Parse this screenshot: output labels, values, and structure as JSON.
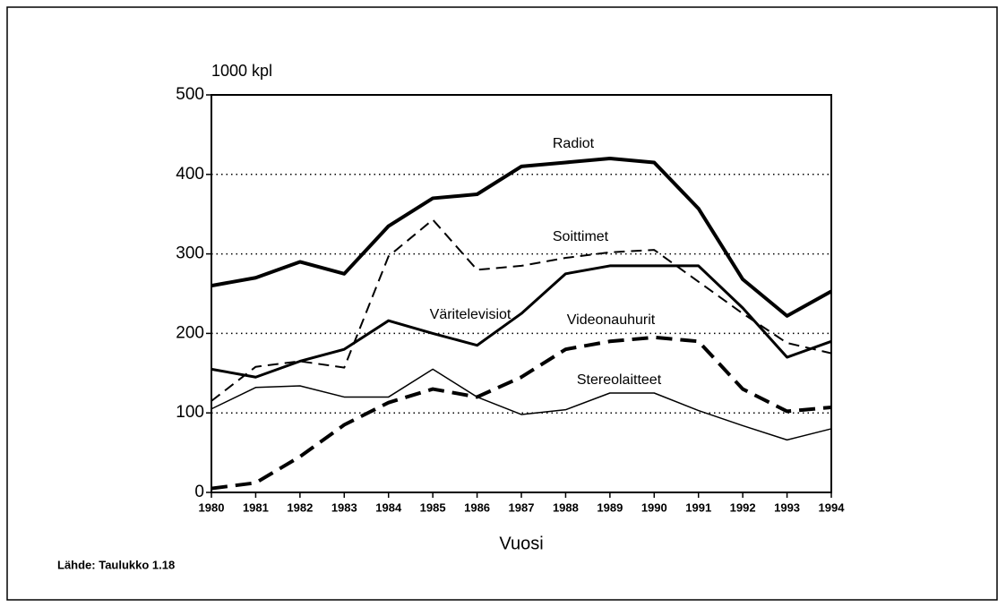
{
  "chart_data": {
    "type": "line",
    "y_label": "1000 kpl",
    "x_label": "Vuosi",
    "source": "Lähde: Taulukko 1.18",
    "x": [
      1980,
      1981,
      1982,
      1983,
      1984,
      1985,
      1986,
      1987,
      1988,
      1989,
      1990,
      1991,
      1992,
      1993,
      1994
    ],
    "xlim": [
      1980,
      1994
    ],
    "xticks": [
      1980,
      1981,
      1982,
      1983,
      1984,
      1985,
      1986,
      1987,
      1988,
      1989,
      1990,
      1991,
      1992,
      1993,
      1994
    ],
    "ylim": [
      0,
      500
    ],
    "yticks": [
      0,
      100,
      200,
      300,
      400,
      500
    ],
    "grid": true,
    "series": [
      {
        "name": "Radiot",
        "color": "#000000",
        "dashed": false,
        "line_width": 4,
        "values": [
          260,
          270,
          290,
          275,
          335,
          370,
          375,
          410,
          415,
          420,
          415,
          357,
          268,
          222,
          253
        ]
      },
      {
        "name": "Soittimet",
        "color": "#000000",
        "dashed": true,
        "line_width": 2,
        "values": [
          115,
          158,
          165,
          157,
          297,
          343,
          280,
          285,
          295,
          302,
          305,
          265,
          225,
          188,
          175
        ]
      },
      {
        "name": "Väritelevisiot",
        "color": "#000000",
        "dashed": false,
        "line_width": 3,
        "values": [
          155,
          145,
          165,
          180,
          216,
          200,
          185,
          225,
          275,
          285,
          285,
          285,
          232,
          170,
          190
        ]
      },
      {
        "name": "Videonauhurit",
        "color": "#000000",
        "dashed": true,
        "line_width": 4,
        "values": [
          5,
          12,
          45,
          85,
          113,
          130,
          120,
          145,
          180,
          190,
          195,
          190,
          130,
          102,
          107
        ]
      },
      {
        "name": "Stereolaitteet",
        "color": "#000000",
        "dashed": false,
        "line_width": 1.5,
        "values": [
          105,
          132,
          134,
          120,
          120,
          155,
          120,
          98,
          104,
          125,
          125,
          103,
          84,
          66,
          80
        ]
      }
    ]
  }
}
